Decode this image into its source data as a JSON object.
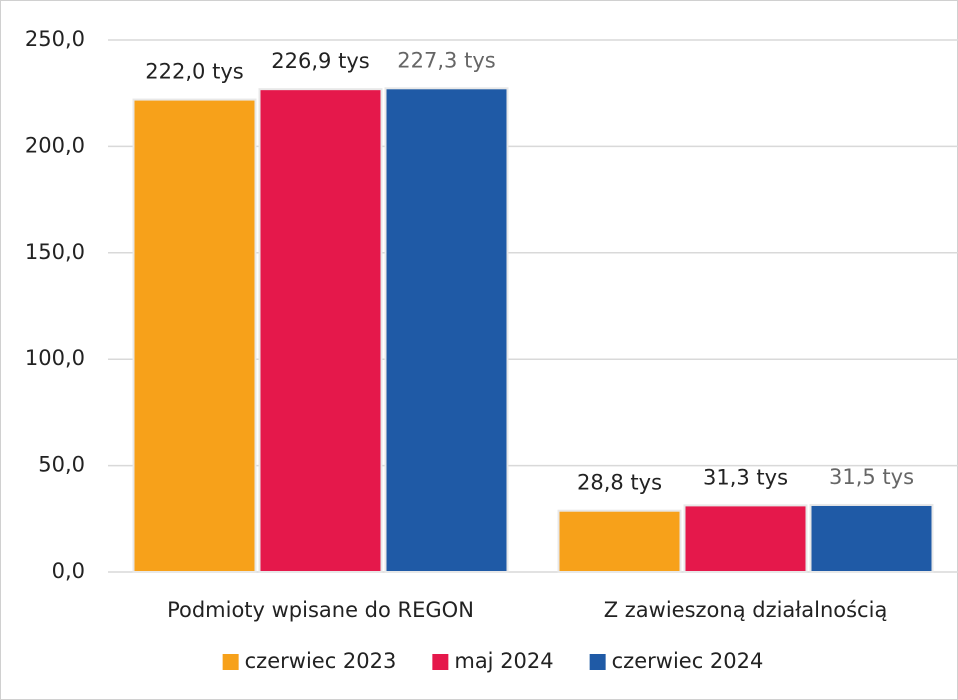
{
  "chart_data": {
    "type": "bar",
    "categories": [
      "Podmioty wpisane do REGON",
      "Z zawieszoną działalnością"
    ],
    "series": [
      {
        "name": "czerwiec 2023",
        "color": "#f7a11a",
        "values": [
          222.0,
          28.8
        ],
        "value_labels": [
          "222,0 tys",
          "28,8 tys"
        ]
      },
      {
        "name": "maj 2024",
        "color": "#e5184b",
        "values": [
          226.9,
          31.3
        ],
        "value_labels": [
          "226,9 tys",
          "31,3 tys"
        ]
      },
      {
        "name": "czerwiec 2024",
        "color": "#1f5aa6",
        "values": [
          227.3,
          31.5
        ],
        "value_labels": [
          "227,3 tys",
          "31,5 tys"
        ]
      }
    ],
    "ylim": [
      0,
      250
    ],
    "yticks": [
      {
        "value": 0,
        "label": "0,0"
      },
      {
        "value": 50,
        "label": "50,0"
      },
      {
        "value": 100,
        "label": "100,0"
      },
      {
        "value": 150,
        "label": "150,0"
      },
      {
        "value": 200,
        "label": "200,0"
      },
      {
        "value": 250,
        "label": "250,0"
      }
    ],
    "grid": true,
    "legend": "bottom"
  }
}
